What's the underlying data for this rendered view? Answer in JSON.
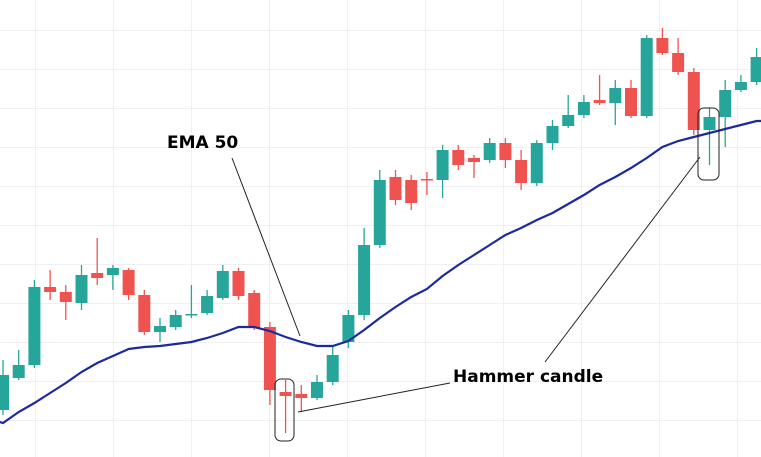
{
  "chart_data": {
    "type": "candlestick",
    "open": [
      47,
      79,
      92,
      170,
      165,
      154,
      184,
      182,
      187,
      162,
      125,
      130,
      142,
      144,
      159,
      186,
      164,
      130,
      65,
      63,
      59,
      75,
      115,
      142,
      212,
      280,
      277,
      278,
      277,
      307,
      299,
      297,
      314,
      297,
      274,
      314,
      331,
      342,
      357,
      354,
      369,
      341,
      419,
      404,
      385,
      327,
      340,
      367,
      375
    ],
    "high": [
      97,
      107,
      177,
      187,
      172,
      192,
      219,
      192,
      189,
      167,
      139,
      147,
      172,
      167,
      192,
      189,
      167,
      135,
      77,
      72,
      82,
      112,
      147,
      229,
      287,
      287,
      282,
      285,
      312,
      312,
      302,
      319,
      319,
      307,
      317,
      337,
      362,
      362,
      382,
      377,
      377,
      422,
      429,
      419,
      389,
      349,
      377,
      382,
      409
    ],
    "low": [
      42,
      77,
      89,
      157,
      137,
      147,
      172,
      167,
      157,
      122,
      115,
      127,
      139,
      142,
      157,
      157,
      127,
      52,
      24,
      45,
      57,
      72,
      109,
      137,
      209,
      252,
      247,
      262,
      259,
      287,
      279,
      294,
      289,
      267,
      271,
      307,
      329,
      339,
      352,
      332,
      339,
      339,
      402,
      382,
      322,
      292,
      310,
      365,
      372
    ],
    "close": [
      82,
      92,
      170,
      165,
      155,
      182,
      179,
      189,
      162,
      125,
      131,
      142,
      143,
      161,
      186,
      161,
      129,
      67,
      61,
      59,
      75,
      102,
      142,
      212,
      277,
      257,
      254,
      277,
      307,
      292,
      295,
      314,
      297,
      274,
      314,
      331,
      342,
      355,
      354,
      369,
      341,
      419,
      404,
      385,
      327,
      340,
      367,
      375,
      400
    ],
    "up_color": "#26a69a",
    "down_color": "#ef5350",
    "overlay": {
      "name": "EMA 50",
      "color": "#1c2a9c",
      "values": [
        34,
        45,
        54,
        64,
        74,
        85,
        94,
        101,
        108,
        110,
        111,
        113,
        115,
        119,
        124,
        130,
        130,
        126,
        120,
        115,
        111,
        111,
        116,
        127,
        139,
        150,
        160,
        168,
        181,
        192,
        202,
        212,
        222,
        229,
        237,
        244,
        253,
        262,
        272,
        280,
        289,
        299,
        310,
        316,
        320,
        324,
        328,
        332,
        336
      ]
    },
    "annotations": [
      "Hammer candle"
    ],
    "ylim": [
      0,
      457
    ]
  }
}
